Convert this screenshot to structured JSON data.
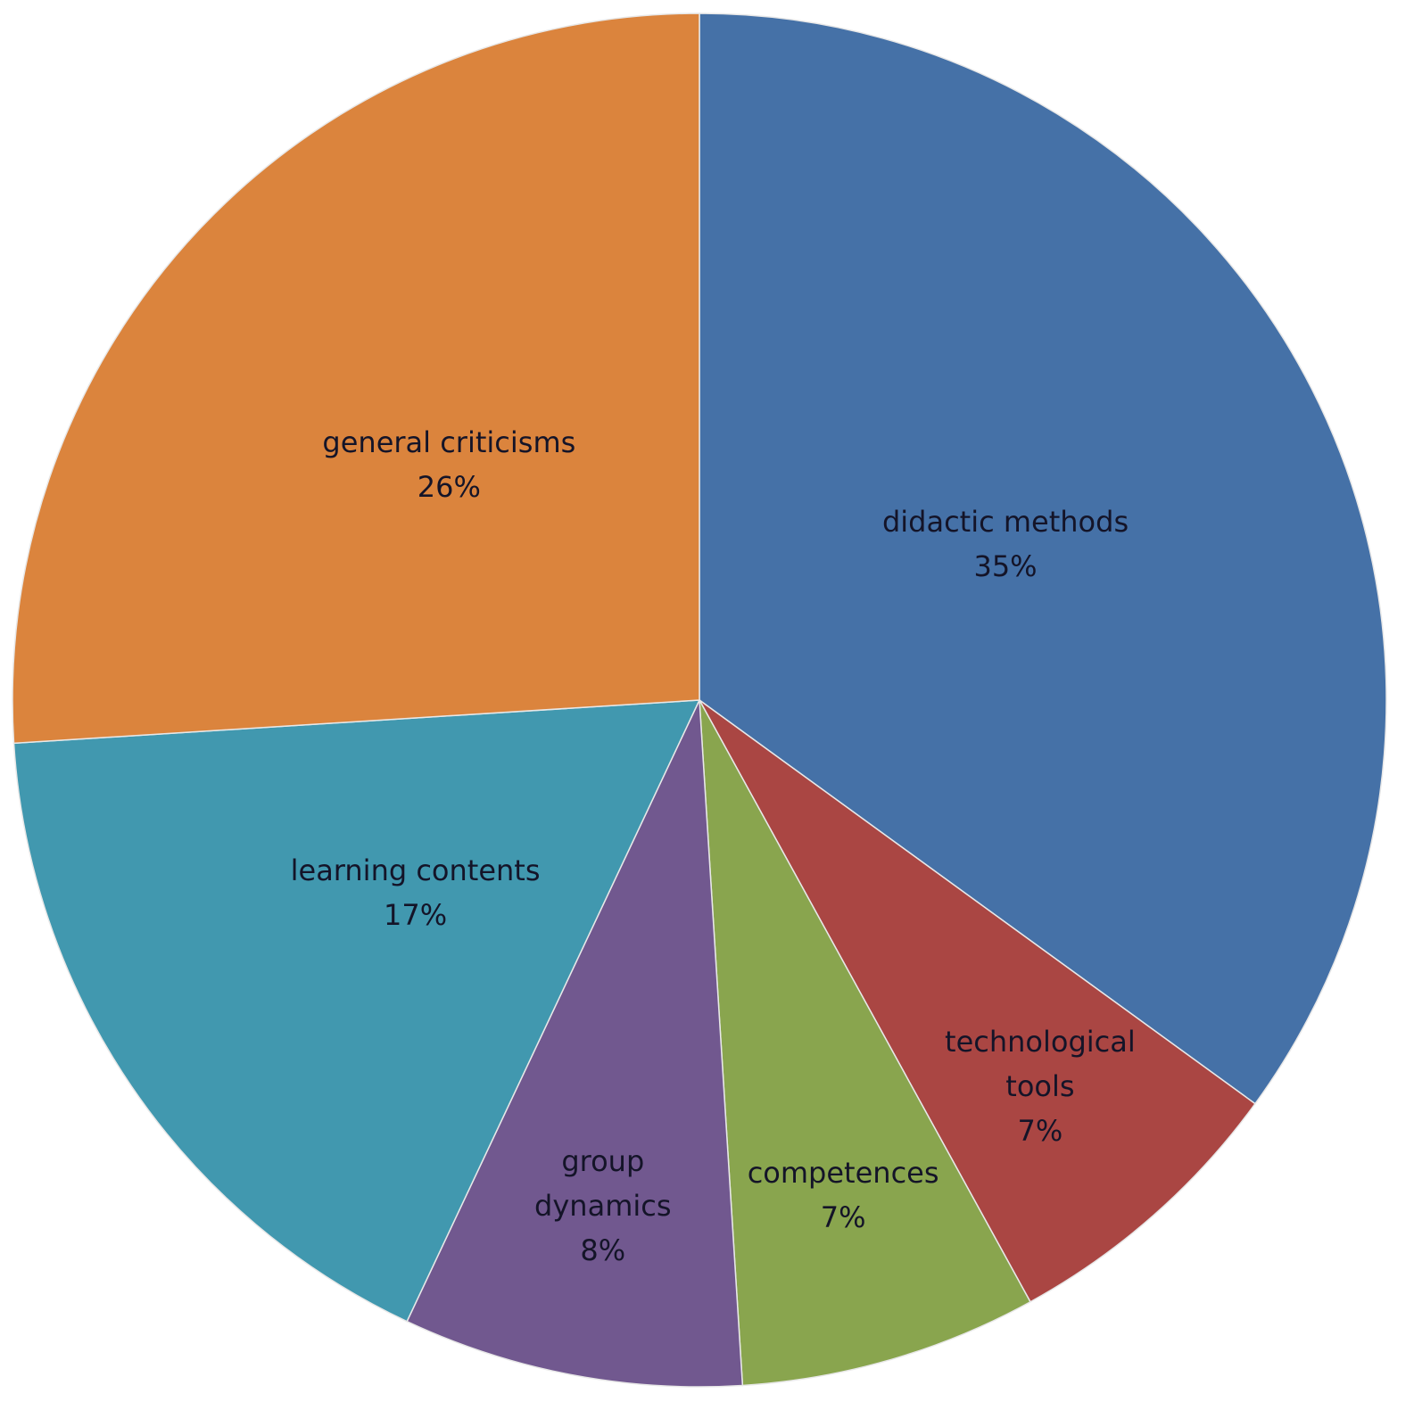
{
  "chart_data": {
    "type": "pie",
    "categories": [
      "didactic methods",
      "technological tools",
      "competences",
      "group dynamics",
      "learning contents",
      "general criticisms"
    ],
    "values": [
      35,
      7,
      7,
      8,
      17,
      26
    ],
    "value_labels": [
      "35%",
      "7%",
      "7%",
      "8%",
      "17%",
      "26%"
    ],
    "colors": [
      "#4571a7",
      "#aa4643",
      "#89a54e",
      "#71588f",
      "#4198af",
      "#db843d"
    ]
  }
}
